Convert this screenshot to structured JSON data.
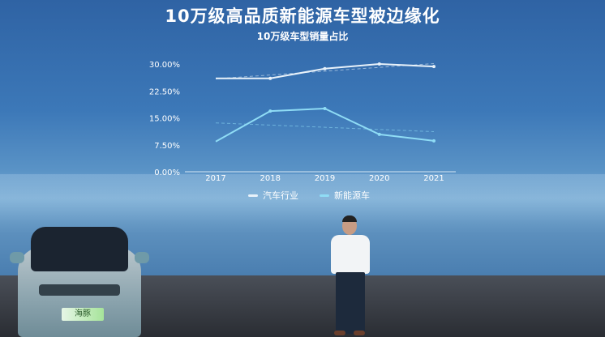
{
  "slide": {
    "title": "10万级高品质新能源车型被边缘化",
    "subtitle": "10万级车型销量占比"
  },
  "car": {
    "plate_text": "海豚"
  },
  "chart_data": {
    "type": "line",
    "title": "10万级车型销量占比",
    "categories": [
      "2017",
      "2018",
      "2019",
      "2020",
      "2021"
    ],
    "yticks": [
      "0.00%",
      "7.50%",
      "15.00%",
      "22.50%",
      "30.00%"
    ],
    "ylim": [
      0,
      30
    ],
    "legend_position": "bottom",
    "grid": false,
    "trendlines": true,
    "series": [
      {
        "name": "汽车行业",
        "values": [
          26.0,
          26.0,
          28.7,
          30.0,
          29.3
        ],
        "color": "#e8f2fa"
      },
      {
        "name": "新能源车",
        "values": [
          8.4,
          16.9,
          17.6,
          10.4,
          8.6
        ],
        "color": "#8fdcf5"
      }
    ]
  }
}
